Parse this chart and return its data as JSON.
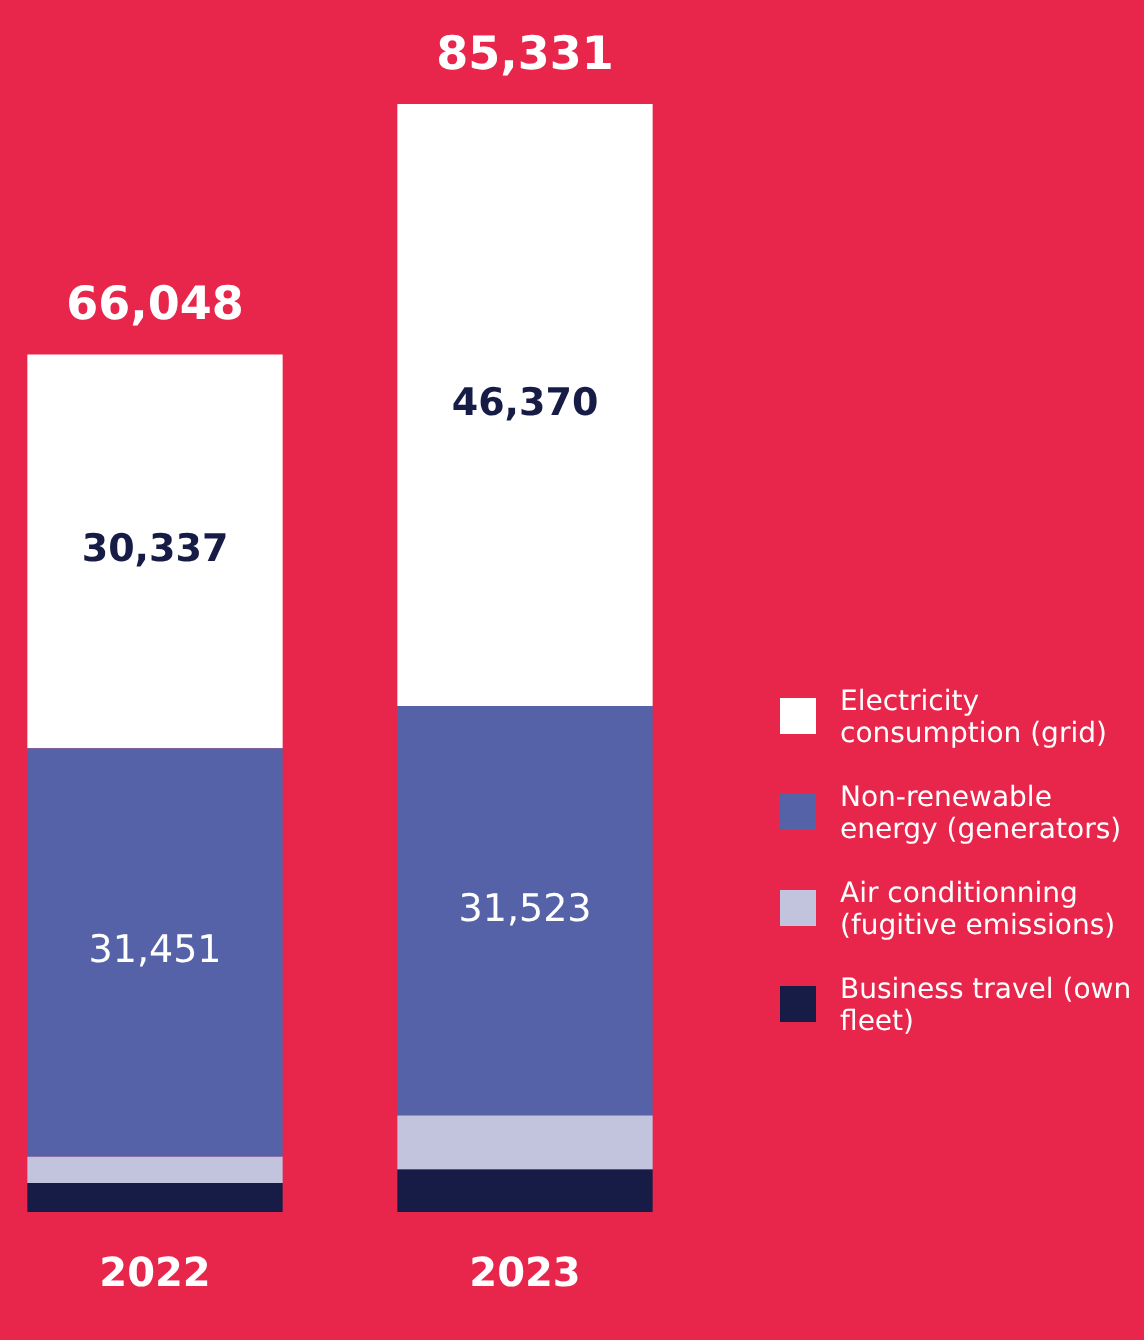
{
  "chart_data": {
    "type": "bar",
    "stacked": true,
    "categories": [
      "2022",
      "2023"
    ],
    "series": [
      {
        "name": "Business travel (own fleet)",
        "color": "#161c45",
        "values": [
          2226,
          3270
        ]
      },
      {
        "name": "Air conditionning (fugitive emissions)",
        "color": "#c2c3dc",
        "values": [
          2034,
          4168
        ]
      },
      {
        "name": "Non-renewable energy (generators)",
        "color": "#5562a8",
        "values": [
          31451,
          31523
        ],
        "value_labels": [
          "31,451",
          "31,523"
        ]
      },
      {
        "name": "Electricity consumption (grid)",
        "color": "#ffffff",
        "values": [
          30337,
          46370
        ],
        "value_labels": [
          "30,337",
          "46,370"
        ]
      }
    ],
    "totals": [
      "66,048",
      "85,331"
    ],
    "ylim": [
      0,
      85331
    ],
    "legend": "right",
    "grid": false
  }
}
